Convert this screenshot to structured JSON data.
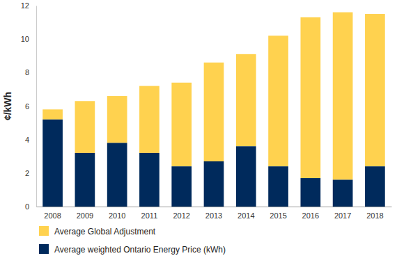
{
  "chart_data": {
    "type": "bar",
    "stacked": true,
    "grid": false,
    "legend": "bottom",
    "y_label": "¢/kWh",
    "categories": [
      "2008",
      "2009",
      "2010",
      "2011",
      "2012",
      "2013",
      "2014",
      "2015",
      "2016",
      "2017",
      "2018"
    ],
    "series": [
      {
        "name": "Average Global Adjustment",
        "color": "#ffd24f",
        "values": [
          0.6,
          3.1,
          2.8,
          4.0,
          5.0,
          5.9,
          5.5,
          7.8,
          9.6,
          10.0,
          9.1
        ]
      },
      {
        "name": "Average weighted Ontario Energy Price (kWh)",
        "color": "#002a5c",
        "values": [
          5.2,
          3.2,
          3.8,
          3.2,
          2.4,
          2.7,
          3.6,
          2.4,
          1.7,
          1.6,
          2.4
        ]
      }
    ],
    "ylim": [
      0,
      12
    ],
    "yticks": [
      0,
      2,
      4,
      6,
      8,
      10,
      12
    ]
  }
}
